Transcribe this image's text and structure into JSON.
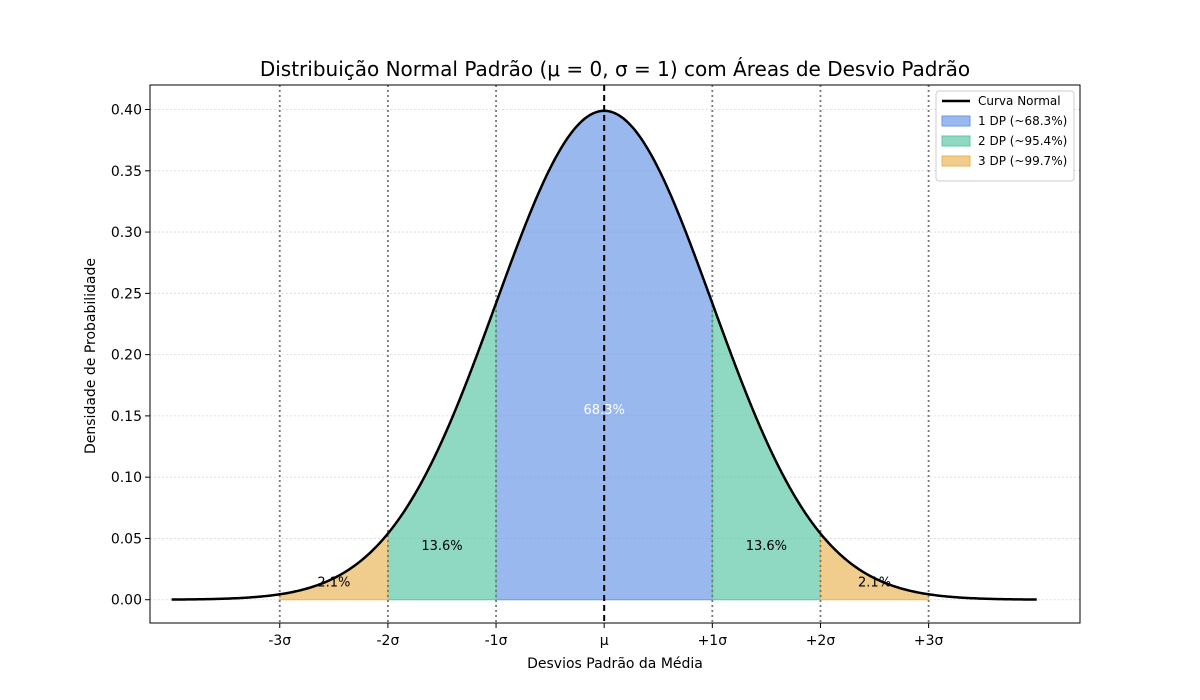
{
  "chart_data": {
    "type": "area",
    "title": "Distribuição Normal Padrão (μ = 0, σ = 1) com Áreas de Desvio Padrão",
    "xlabel": "Desvios Padrão da Média",
    "ylabel": "Densidade de Probabilidade",
    "xlim": [
      -4.2,
      4.4
    ],
    "ylim": [
      -0.019,
      0.42
    ],
    "curve_domain": [
      -4,
      4
    ],
    "mean": 0,
    "sd": 1,
    "x_ticks": [
      {
        "value": -3,
        "label": "-3σ"
      },
      {
        "value": -2,
        "label": "-2σ"
      },
      {
        "value": -1,
        "label": "-1σ"
      },
      {
        "value": 0,
        "label": "μ"
      },
      {
        "value": 1,
        "label": "+1σ"
      },
      {
        "value": 2,
        "label": "+2σ"
      },
      {
        "value": 3,
        "label": "+3σ"
      }
    ],
    "y_ticks": [
      {
        "value": 0.0,
        "label": "0.00"
      },
      {
        "value": 0.05,
        "label": "0.05"
      },
      {
        "value": 0.1,
        "label": "0.10"
      },
      {
        "value": 0.15,
        "label": "0.15"
      },
      {
        "value": 0.2,
        "label": "0.20"
      },
      {
        "value": 0.25,
        "label": "0.25"
      },
      {
        "value": 0.3,
        "label": "0.30"
      },
      {
        "value": 0.35,
        "label": "0.35"
      },
      {
        "value": 0.4,
        "label": "0.40"
      }
    ],
    "grid": "y-dotted",
    "regions": [
      {
        "name": "1 DP (~68.3%)",
        "ranges": [
          [
            -1,
            1
          ]
        ],
        "color": "#6e9ae6"
      },
      {
        "name": "2 DP (~95.4%)",
        "ranges": [
          [
            -2,
            -1
          ],
          [
            1,
            2
          ]
        ],
        "color": "#5fc7a8"
      },
      {
        "name": "3 DP (~99.7%)",
        "ranges": [
          [
            -3,
            -2
          ],
          [
            2,
            3
          ]
        ],
        "color": "#e9b65c"
      }
    ],
    "curve": {
      "name": "Curva Normal",
      "color": "#000000"
    },
    "annotations": [
      {
        "text": "68.3%",
        "x": 0,
        "y": 0.155,
        "color": "#ffffff"
      },
      {
        "text": "13.6%",
        "x": -1.5,
        "y": 0.044,
        "color": "#000000"
      },
      {
        "text": "13.6%",
        "x": 1.5,
        "y": 0.044,
        "color": "#000000"
      },
      {
        "text": "2.1%",
        "x": -2.5,
        "y": 0.014,
        "color": "#000000"
      },
      {
        "text": "2.1%",
        "x": 2.5,
        "y": 0.014,
        "color": "#000000"
      }
    ],
    "vlines": [
      -3,
      -2,
      -1,
      1,
      2,
      3
    ],
    "mean_line": 0,
    "legend": {
      "position": "top-right"
    }
  }
}
